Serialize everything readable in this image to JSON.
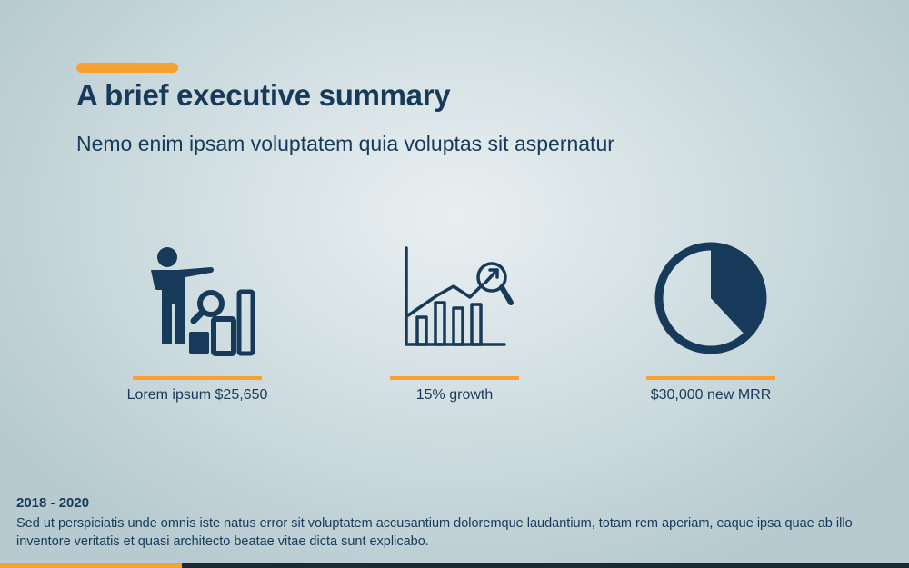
{
  "title": "A brief executive summary",
  "subtitle": "Nemo enim ipsam voluptatem quia voluptas sit aspernatur",
  "kpis": [
    {
      "label": "Lorem ipsum $25,650",
      "icon": "presenter-analytics-icon"
    },
    {
      "label": "15% growth",
      "icon": "growth-chart-icon"
    },
    {
      "label": "$30,000 new MRR",
      "icon": "pie-chart-icon"
    }
  ],
  "footer": {
    "heading": "2018 - 2020",
    "text": "Sed ut perspiciatis unde omnis iste natus error sit voluptatem accusantium doloremque laudantium, totam rem aperiam, eaque ipsa quae ab illo inventore veritatis et quasi architecto beatae vitae dicta sunt explicabo."
  },
  "colors": {
    "accent": "#f6a131",
    "text": "#173a5a",
    "dark_bar": "#1a2b33"
  }
}
